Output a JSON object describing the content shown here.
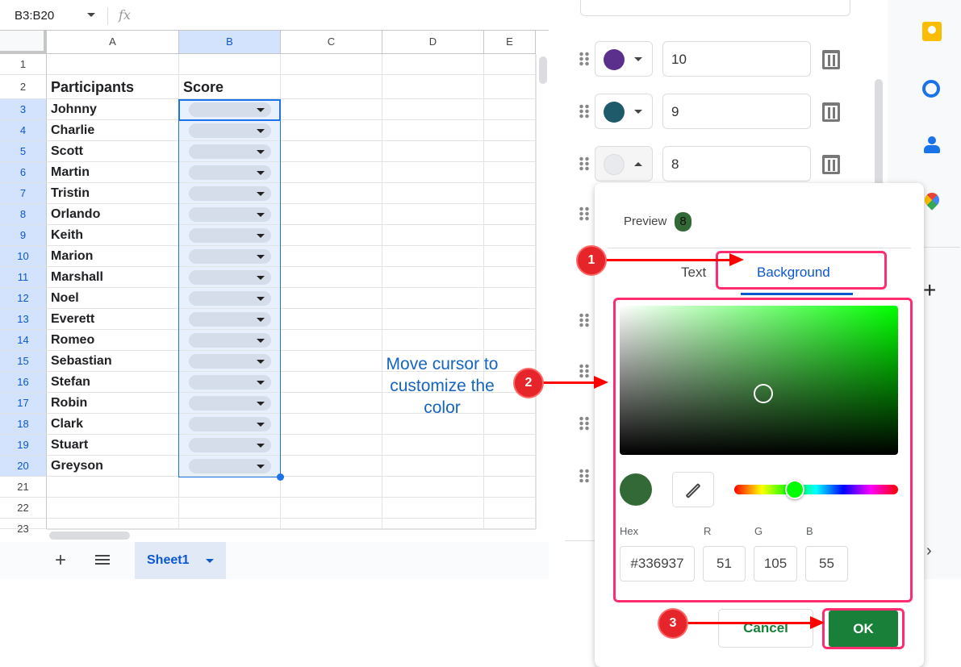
{
  "name_box": {
    "value": "B3:B20",
    "fx": "fx"
  },
  "columns": [
    "A",
    "B",
    "C",
    "D",
    "E"
  ],
  "rows": [
    "1",
    "2",
    "3",
    "4",
    "5",
    "6",
    "7",
    "8",
    "9",
    "10",
    "11",
    "12",
    "13",
    "14",
    "15",
    "16",
    "17",
    "18",
    "19",
    "20",
    "21",
    "22",
    "23"
  ],
  "headers": {
    "participants": "Participants",
    "score": "Score"
  },
  "participants": [
    "Johnny",
    "Charlie",
    "Scott",
    "Martin",
    "Tristin",
    "Orlando",
    "Keith",
    "Marion",
    "Marshall",
    "Noel",
    "Everett",
    "Romeo",
    "Sebastian",
    "Stefan",
    "Robin",
    "Clark",
    "Stuart",
    "Greyson"
  ],
  "sheet_tab": "Sheet1",
  "rules": [
    {
      "color": "#5b2f8c",
      "value": "10"
    },
    {
      "color": "#1f5a6b",
      "value": "9"
    },
    {
      "color": "#e8eaed",
      "value": "8"
    }
  ],
  "picker": {
    "preview_label": "Preview",
    "preview_value": "8",
    "tab_text": "Text",
    "tab_background": "Background",
    "hex_label": "Hex",
    "r_label": "R",
    "g_label": "G",
    "b_label": "B",
    "hex": "#336937",
    "r": "51",
    "g": "105",
    "b": "55",
    "cancel": "Cancel",
    "ok": "OK",
    "hue_color": "#00ff00"
  },
  "annotations": {
    "step1": "1",
    "step2": "2",
    "step3": "3",
    "note": "Move cursor to customize the color"
  },
  "colors": {
    "accent": "#0b57d0",
    "ok_green": "#188038",
    "highlight": "#ff2d6f"
  }
}
